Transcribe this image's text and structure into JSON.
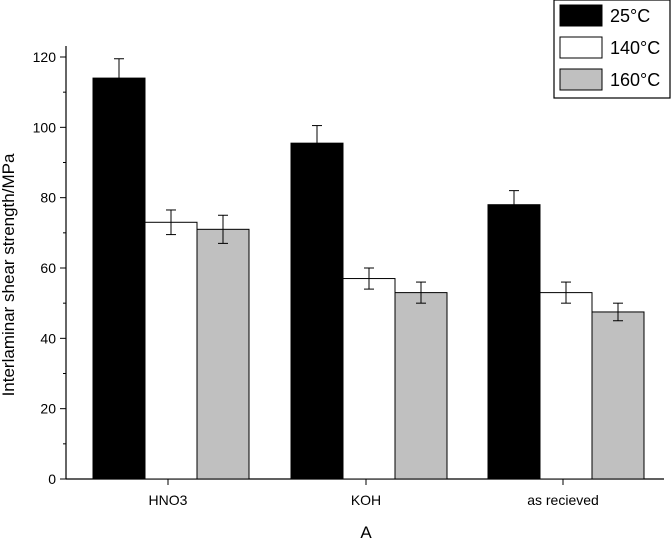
{
  "chart_data": {
    "type": "bar",
    "title": "",
    "xlabel": "A",
    "ylabel": "Interlaminar shear strength/MPa",
    "categories": [
      "HNO3",
      "KOH",
      "as recieved"
    ],
    "ylim": [
      0,
      120
    ],
    "yticks": [
      0,
      20,
      40,
      60,
      80,
      100,
      120
    ],
    "grid": false,
    "legend_position": "top-right",
    "series": [
      {
        "name": "25°C",
        "color": "#000000",
        "values": [
          114,
          95.5,
          78
        ],
        "errors": [
          5.5,
          5,
          4
        ]
      },
      {
        "name": "140°C",
        "color": "#ffffff",
        "values": [
          73,
          57,
          53
        ],
        "errors": [
          3.5,
          3,
          3
        ]
      },
      {
        "name": "160°C",
        "color": "#c0c0c0",
        "values": [
          71,
          53,
          47.5
        ],
        "errors": [
          4,
          3,
          2.5
        ]
      }
    ]
  }
}
